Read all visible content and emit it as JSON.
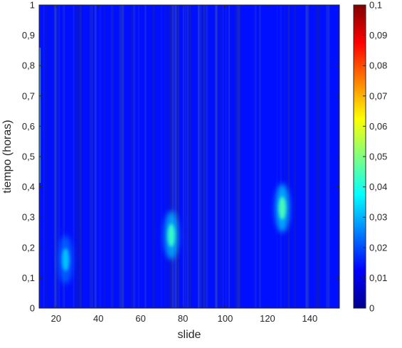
{
  "chart_data": {
    "type": "heatmap",
    "title": "",
    "xlabel": "slide",
    "ylabel": "tiempo (horas)",
    "xlim": [
      12,
      154
    ],
    "ylim": [
      0,
      1
    ],
    "x_ticks": [
      20,
      40,
      60,
      80,
      100,
      120,
      140
    ],
    "x_tick_labels": [
      "20",
      "40",
      "60",
      "80",
      "100",
      "120",
      "140"
    ],
    "y_ticks": [
      0,
      0.1,
      0.2,
      0.3,
      0.4,
      0.5,
      0.6,
      0.7,
      0.8,
      0.9,
      1
    ],
    "y_tick_labels": [
      "0",
      "0,1",
      "0,2",
      "0,3",
      "0,4",
      "0,5",
      "0,6",
      "0,7",
      "0,8",
      "0,9",
      "1"
    ],
    "colorbar": {
      "colormap": "jet",
      "range": [
        0,
        0.1
      ],
      "ticks": [
        0,
        0.01,
        0.02,
        0.03,
        0.04,
        0.05,
        0.06,
        0.07,
        0.08,
        0.09,
        0.1
      ],
      "tick_labels": [
        "0",
        "0,01",
        "0,02",
        "0,03",
        "0,04",
        "0,05",
        "0,06",
        "0,07",
        "0,08",
        "0,09",
        "0,1"
      ],
      "placement": "right"
    },
    "background_value": 0.006,
    "hotspots": [
      {
        "x": 24.5,
        "y": 0.16,
        "value": 0.032
      },
      {
        "x": 74.5,
        "y": 0.24,
        "value": 0.043
      },
      {
        "x": 127,
        "y": 0.33,
        "value": 0.045
      }
    ],
    "grid": false
  }
}
